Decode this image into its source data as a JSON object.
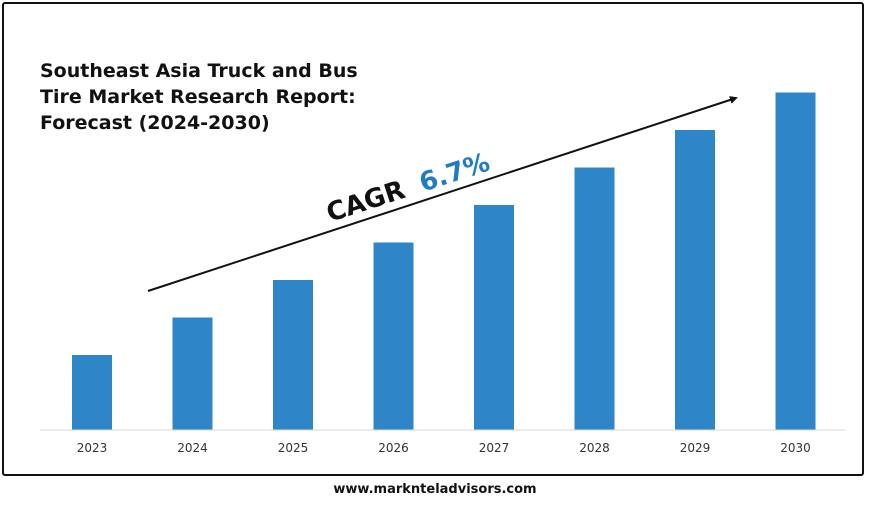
{
  "chart_data": {
    "type": "bar",
    "title": "Southeast Asia Truck and Bus Tire Market Research Report: Forecast (2024-2030)",
    "categories": [
      "2023",
      "2024",
      "2025",
      "2026",
      "2027",
      "2028",
      "2029",
      "2030"
    ],
    "values": [
      1.0,
      1.5,
      2.0,
      2.5,
      3.0,
      3.5,
      4.0,
      4.5
    ],
    "ylim": [
      0,
      5.2
    ],
    "xlabel": "",
    "ylabel": "",
    "grid": false,
    "annotation": {
      "cagr_label": "CAGR",
      "cagr_value": "6.7%"
    },
    "colors": {
      "bar": "#2e86c8",
      "accent": "#1f7cc4",
      "text": "#111111"
    }
  },
  "footer": {
    "website": "www.marknteladvisors.com"
  }
}
